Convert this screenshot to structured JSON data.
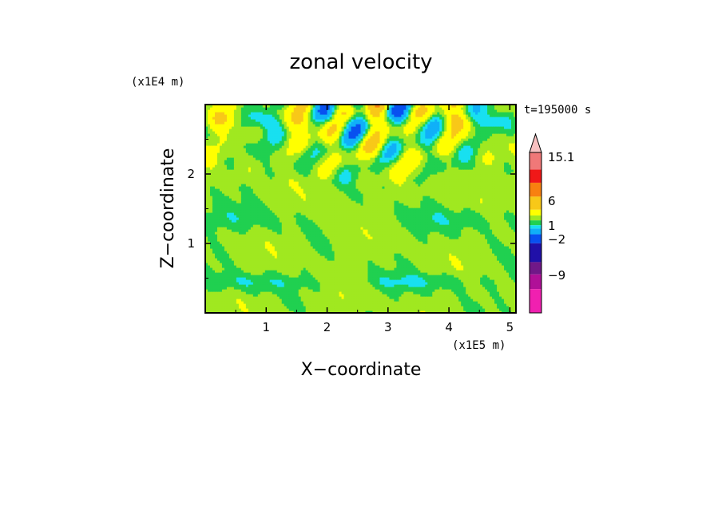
{
  "chart_data": {
    "type": "heatmap",
    "title": "zonal velocity",
    "time_label": "t=195000 s",
    "xlabel": "X−coordinate",
    "ylabel": "Z−coordinate",
    "x_unit": "(x1E5 m)",
    "y_unit": "(x1E4 m)",
    "x_ticks": [
      "1",
      "2",
      "3",
      "4",
      "5"
    ],
    "y_ticks": [
      "1",
      "2"
    ],
    "xlim": [
      0,
      5.1
    ],
    "ylim": [
      0,
      3.0
    ],
    "colorbar": {
      "labels": [
        "15.1",
        "6",
        "1",
        "−2",
        "−9"
      ],
      "levels": [
        -15,
        -12,
        -9,
        -6,
        -4,
        -2,
        -1,
        0,
        1,
        3,
        6,
        9,
        12,
        15.1
      ],
      "colors": [
        "#f020b0",
        "#b01098",
        "#701888",
        "#2010a8",
        "#0850f0",
        "#10b0f8",
        "#18e0f0",
        "#20d050",
        "#a0e820",
        "#ffff00",
        "#f8c818",
        "#f88010",
        "#f01818",
        "#f07878",
        "#f8c0c0"
      ],
      "extend_max": true
    }
  }
}
